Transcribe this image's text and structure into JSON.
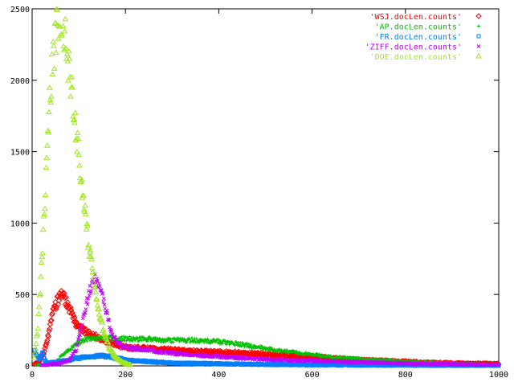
{
  "chart_data": {
    "type": "scatter",
    "title": "",
    "xlabel": "",
    "ylabel": "",
    "xlim": [
      0,
      1000
    ],
    "ylim": [
      0,
      2500
    ],
    "xticks": [
      0,
      200,
      400,
      600,
      800,
      1000
    ],
    "yticks": [
      0,
      500,
      1000,
      1500,
      2000,
      2500
    ],
    "grid": false,
    "legend_position": "top-right",
    "series": [
      {
        "name": "'WSJ.docLen.counts'",
        "color": "#ff0000",
        "marker": "◇",
        "points": [
          [
            5,
            10
          ],
          [
            15,
            30
          ],
          [
            25,
            90
          ],
          [
            35,
            220
          ],
          [
            45,
            380
          ],
          [
            55,
            460
          ],
          [
            62,
            490
          ],
          [
            68,
            480
          ],
          [
            75,
            440
          ],
          [
            85,
            360
          ],
          [
            95,
            290
          ],
          [
            110,
            250
          ],
          [
            125,
            220
          ],
          [
            140,
            200
          ],
          [
            160,
            170
          ],
          [
            180,
            150
          ],
          [
            200,
            130
          ],
          [
            250,
            120
          ],
          [
            300,
            110
          ],
          [
            350,
            100
          ],
          [
            400,
            95
          ],
          [
            450,
            90
          ],
          [
            500,
            80
          ],
          [
            550,
            70
          ],
          [
            600,
            65
          ],
          [
            650,
            50
          ],
          [
            700,
            40
          ],
          [
            750,
            35
          ],
          [
            800,
            28
          ],
          [
            850,
            22
          ],
          [
            900,
            18
          ],
          [
            950,
            15
          ],
          [
            1000,
            12
          ]
        ]
      },
      {
        "name": "'AP.docLen.counts'",
        "color": "#00c000",
        "marker": "+",
        "points": [
          [
            10,
            5
          ],
          [
            30,
            10
          ],
          [
            50,
            20
          ],
          [
            60,
            60
          ],
          [
            70,
            90
          ],
          [
            90,
            140
          ],
          [
            110,
            180
          ],
          [
            130,
            190
          ],
          [
            150,
            195
          ],
          [
            200,
            190
          ],
          [
            250,
            185
          ],
          [
            300,
            180
          ],
          [
            350,
            180
          ],
          [
            400,
            170
          ],
          [
            450,
            150
          ],
          [
            500,
            120
          ],
          [
            550,
            100
          ],
          [
            600,
            80
          ],
          [
            650,
            60
          ],
          [
            700,
            50
          ],
          [
            750,
            40
          ],
          [
            800,
            30
          ],
          [
            850,
            25
          ],
          [
            900,
            18
          ],
          [
            950,
            12
          ],
          [
            1000,
            8
          ]
        ]
      },
      {
        "name": "'FR.docLen.counts'",
        "color": "#0080ff",
        "marker": "□",
        "points": [
          [
            5,
            100
          ],
          [
            15,
            50
          ],
          [
            22,
            90
          ],
          [
            30,
            20
          ],
          [
            50,
            25
          ],
          [
            70,
            35
          ],
          [
            90,
            50
          ],
          [
            110,
            60
          ],
          [
            130,
            65
          ],
          [
            150,
            70
          ],
          [
            170,
            60
          ],
          [
            190,
            50
          ],
          [
            200,
            40
          ],
          [
            250,
            30
          ],
          [
            300,
            20
          ],
          [
            400,
            15
          ],
          [
            500,
            10
          ],
          [
            600,
            8
          ],
          [
            700,
            6
          ],
          [
            800,
            5
          ],
          [
            900,
            4
          ],
          [
            1000,
            3
          ]
        ]
      },
      {
        "name": "'ZIFF.docLen.counts'",
        "color": "#c000ff",
        "marker": "×",
        "points": [
          [
            20,
            5
          ],
          [
            40,
            10
          ],
          [
            60,
            20
          ],
          [
            80,
            40
          ],
          [
            95,
            120
          ],
          [
            105,
            260
          ],
          [
            115,
            420
          ],
          [
            125,
            540
          ],
          [
            132,
            600
          ],
          [
            138,
            610
          ],
          [
            145,
            560
          ],
          [
            152,
            470
          ],
          [
            160,
            360
          ],
          [
            168,
            260
          ],
          [
            175,
            190
          ],
          [
            190,
            150
          ],
          [
            200,
            130
          ],
          [
            250,
            110
          ],
          [
            300,
            90
          ],
          [
            350,
            75
          ],
          [
            400,
            65
          ],
          [
            450,
            55
          ],
          [
            500,
            45
          ],
          [
            550,
            40
          ],
          [
            600,
            35
          ],
          [
            650,
            30
          ],
          [
            700,
            25
          ],
          [
            750,
            22
          ],
          [
            800,
            18
          ],
          [
            850,
            15
          ],
          [
            900,
            12
          ],
          [
            950,
            10
          ],
          [
            1000,
            8
          ]
        ]
      },
      {
        "name": "'DOE.docLen.counts'",
        "color": "#a0e820",
        "marker": "△",
        "points": [
          [
            5,
            60
          ],
          [
            12,
            250
          ],
          [
            18,
            550
          ],
          [
            25,
            1000
          ],
          [
            32,
            1500
          ],
          [
            38,
            1900
          ],
          [
            45,
            2150
          ],
          [
            52,
            2350
          ],
          [
            58,
            2450
          ],
          [
            62,
            2480
          ],
          [
            66,
            2400
          ],
          [
            72,
            2250
          ],
          [
            80,
            2050
          ],
          [
            90,
            1750
          ],
          [
            100,
            1450
          ],
          [
            110,
            1150
          ],
          [
            120,
            880
          ],
          [
            130,
            650
          ],
          [
            140,
            440
          ],
          [
            150,
            280
          ],
          [
            160,
            170
          ],
          [
            170,
            100
          ],
          [
            180,
            60
          ],
          [
            190,
            30
          ],
          [
            200,
            15
          ],
          [
            210,
            5
          ]
        ]
      }
    ]
  }
}
